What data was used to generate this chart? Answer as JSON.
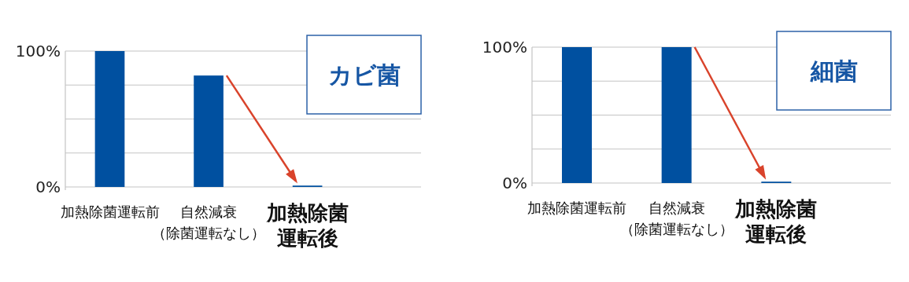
{
  "chart_data": [
    {
      "type": "bar",
      "title": "カビ菌",
      "categories": [
        "加熱除菌運転前",
        "自然減衰（除菌運転なし）",
        "加熱除菌運転後"
      ],
      "values": [
        100,
        82,
        1
      ],
      "color": "#0050a0",
      "ylim": [
        0,
        100
      ],
      "yticks": [
        {
          "value": 0,
          "label": "0%"
        },
        {
          "value": 25,
          "label": null
        },
        {
          "value": 50,
          "label": null
        },
        {
          "value": 75,
          "label": null
        },
        {
          "value": 100,
          "label": "100%"
        }
      ],
      "grid": "y"
    },
    {
      "type": "bar",
      "title": "細菌",
      "categories": [
        "加熱除菌運転前",
        "自然減衰（除菌運転なし）",
        "加熱除菌運転後"
      ],
      "values": [
        100,
        100,
        1
      ],
      "color": "#0050a0",
      "ylim": [
        0,
        100
      ],
      "yticks": [
        {
          "value": 0,
          "label": "0%"
        },
        {
          "value": 25,
          "label": null
        },
        {
          "value": 50,
          "label": null
        },
        {
          "value": 75,
          "label": null
        },
        {
          "value": 100,
          "label": "100%"
        }
      ],
      "grid": "y"
    }
  ]
}
